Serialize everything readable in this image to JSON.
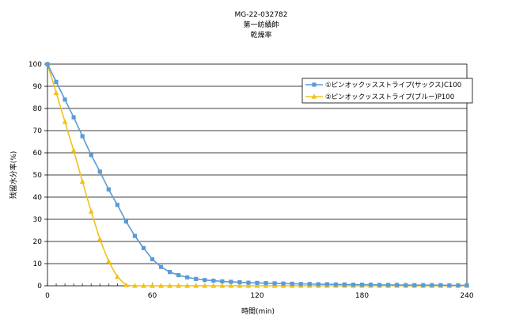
{
  "chart_data": {
    "type": "line",
    "title_lines": [
      "MG-22-032782",
      "第一紡績帥",
      "乾燥率"
    ],
    "xlabel": "時間(min)",
    "ylabel": "残留水分率(%)",
    "xlim": [
      0,
      240
    ],
    "ylim": [
      0,
      100
    ],
    "xticks": [
      "0",
      "60",
      "120",
      "180",
      "240"
    ],
    "yticks": [
      "0",
      "10",
      "20",
      "30",
      "40",
      "50",
      "60",
      "70",
      "80",
      "90",
      "100"
    ],
    "grid": "horizontal",
    "legend_position": "top-right",
    "series": [
      {
        "name": "①ピンオックッスストライプ(サックス)C100",
        "color": "#5b9bd5",
        "marker": "square",
        "x": [
          0,
          5,
          10,
          15,
          20,
          25,
          30,
          35,
          40,
          45,
          50,
          55,
          60,
          65,
          70,
          75,
          80,
          85,
          90,
          95,
          100,
          105,
          110,
          115,
          120,
          125,
          130,
          135,
          140,
          145,
          150,
          155,
          160,
          165,
          170,
          175,
          180,
          185,
          190,
          195,
          200,
          205,
          210,
          215,
          220,
          225,
          230,
          235,
          240
        ],
        "y": [
          100,
          92,
          84,
          76,
          67.5,
          59,
          51.5,
          43.5,
          36.5,
          29,
          22.5,
          17,
          12,
          8.5,
          6.2,
          4.8,
          3.8,
          3.1,
          2.6,
          2.3,
          2,
          1.8,
          1.6,
          1.4,
          1.3,
          1.2,
          1.1,
          1,
          0.9,
          0.8,
          0.8,
          0.7,
          0.7,
          0.6,
          0.6,
          0.5,
          0.5,
          0.5,
          0.4,
          0.4,
          0.4,
          0.3,
          0.3,
          0.3,
          0.3,
          0.3,
          0.2,
          0.2,
          0.2
        ]
      },
      {
        "name": "②ピンオックッスストライプ(ブルー)P100",
        "color": "#f2c218",
        "marker": "triangle",
        "x": [
          0,
          5,
          10,
          15,
          20,
          25,
          30,
          35,
          40,
          45,
          50,
          55,
          60,
          65,
          70,
          75,
          80,
          85,
          90,
          95,
          100,
          105,
          110,
          115,
          120,
          125,
          130,
          135,
          140,
          145,
          150,
          155,
          160,
          165,
          170,
          175,
          180,
          185,
          190,
          195,
          200,
          205,
          210,
          215,
          220,
          225,
          230,
          235,
          240
        ],
        "y": [
          100,
          87,
          74,
          61,
          47,
          33.5,
          21,
          11,
          4,
          0.3,
          0,
          0,
          0,
          0,
          0,
          0,
          0,
          0,
          0,
          0,
          0,
          0,
          0,
          0,
          0,
          0,
          0,
          0,
          0,
          0,
          0,
          0,
          0,
          0,
          0,
          0,
          0,
          0,
          0,
          0,
          0,
          0,
          0,
          0,
          0,
          0,
          0,
          0,
          0
        ]
      }
    ]
  }
}
